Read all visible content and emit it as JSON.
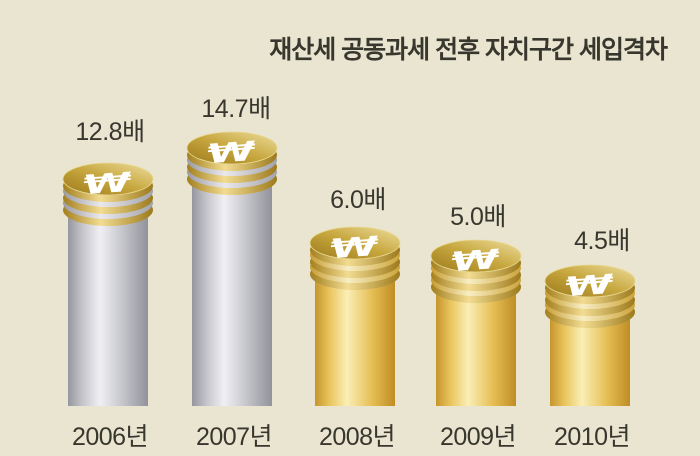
{
  "title": "재산세 공동과세 전후 자치구간 세입격차",
  "chart_data": {
    "type": "bar",
    "title": "재산세 공동과세 전후 자치구간 세입격차",
    "categories": [
      "2006년",
      "2007년",
      "2008년",
      "2009년",
      "2010년"
    ],
    "values": [
      12.8,
      14.7,
      6.0,
      5.0,
      4.5
    ],
    "value_labels": [
      "12.8배",
      "14.7배",
      "6.0배",
      "5.0배",
      "4.5배"
    ],
    "unit": "배",
    "bar_styles": [
      "silver",
      "silver",
      "gold",
      "gold",
      "gold"
    ],
    "icon": "won-coin",
    "legend": "none",
    "grid": "off",
    "colors": {
      "background": "#e9e5d1",
      "text": "#38372e",
      "coin_face_dark": "#9c7a1c",
      "coin_face_light": "#eede9e",
      "gold_shaft_highlight": "#faefb6",
      "gold_shaft_edge": "#c6952e",
      "silver_shaft_highlight": "#f0f0f4",
      "silver_shaft_edge": "#96969e",
      "won_symbol": "#ffffff"
    }
  }
}
